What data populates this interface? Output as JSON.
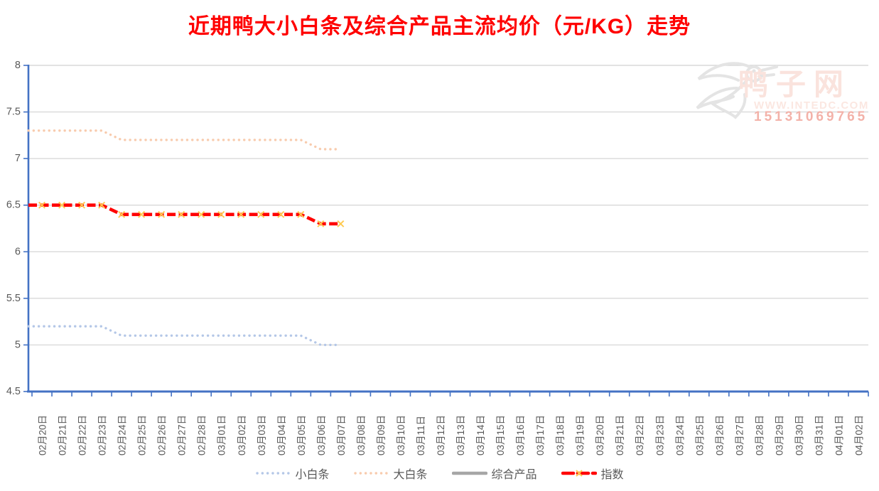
{
  "title": "近期鸭大小白条及综合产品主流均价（元/KG）走势",
  "watermark": {
    "site_name": "鸭子网",
    "url": "WWW.INTEDC.COM",
    "phone": "15131069765",
    "logo": "duck-logo"
  },
  "chart_data": {
    "type": "line",
    "title": "近期鸭大小白条及综合产品主流均价（元/KG）走势",
    "title_color": "#FF0000",
    "xlabel": "",
    "ylabel": "",
    "ylim": [
      4.5,
      8
    ],
    "ytick_step": 0.5,
    "yticks": [
      "8",
      "7.5",
      "7",
      "6.5",
      "6",
      "5.5",
      "5",
      "4.5"
    ],
    "grid": "horizontal",
    "grid_color": "#D9D9D9",
    "axis_color": "#4472C4",
    "label_color": "#595959",
    "legend_position": "bottom",
    "categories": [
      "02月20日",
      "02月21日",
      "02月22日",
      "02月23日",
      "02月24日",
      "02月25日",
      "02月26日",
      "02月27日",
      "02月28日",
      "03月01日",
      "03月02日",
      "03月03日",
      "03月04日",
      "03月05日",
      "03月06日",
      "03月07日",
      "03月08日",
      "03月09日",
      "03月10日",
      "03月11日",
      "03月12日",
      "03月13日",
      "03月14日",
      "03月15日",
      "03月16日",
      "03月17日",
      "03月18日",
      "03月19日",
      "03月20日",
      "03月21日",
      "03月22日",
      "03月23日",
      "03月24日",
      "03月25日",
      "03月26日",
      "03月27日",
      "03月28日",
      "03月29日",
      "03月30日",
      "03月31日",
      "04月01日",
      "04月02日"
    ],
    "series": [
      {
        "id": "small-white-strip",
        "name": "小白条",
        "color": "#B4C7E7",
        "style": "dotted",
        "values": [
          5.2,
          5.2,
          5.2,
          5.2,
          5.1,
          5.1,
          5.1,
          5.1,
          5.1,
          5.1,
          5.1,
          5.1,
          5.1,
          5.1,
          5.0,
          5.0
        ]
      },
      {
        "id": "large-white-strip",
        "name": "大白条",
        "color": "#F8CBAD",
        "style": "dotted",
        "values": [
          7.3,
          7.3,
          7.3,
          7.3,
          7.2,
          7.2,
          7.2,
          7.2,
          7.2,
          7.2,
          7.2,
          7.2,
          7.2,
          7.2,
          7.1,
          7.1
        ]
      },
      {
        "id": "composite-product",
        "name": "综合产品",
        "color": "#A6A6A6",
        "style": "solid",
        "visible_in_plot": false,
        "values": []
      },
      {
        "id": "index",
        "name": "指数",
        "color": "#FF0000",
        "marker_color": "#FFC94D",
        "style": "dashed-x",
        "values": [
          6.5,
          6.5,
          6.5,
          6.5,
          6.4,
          6.4,
          6.4,
          6.4,
          6.4,
          6.4,
          6.4,
          6.4,
          6.4,
          6.4,
          6.3,
          6.3
        ]
      }
    ]
  }
}
